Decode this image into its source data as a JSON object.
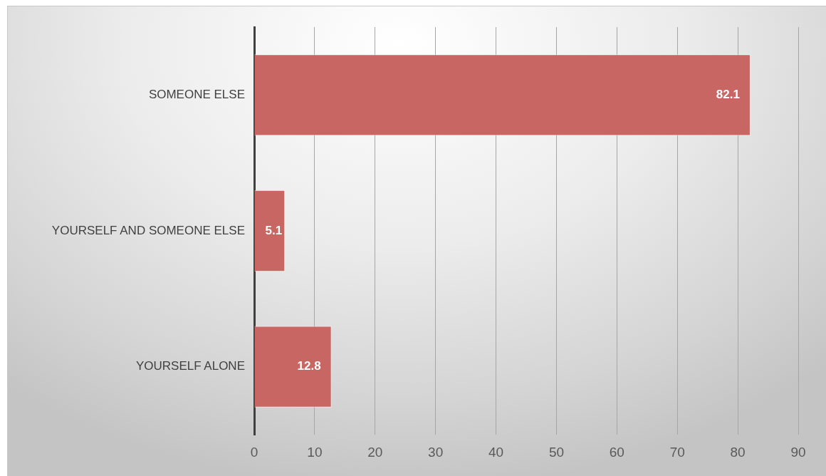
{
  "chart_data": {
    "type": "bar",
    "orientation": "horizontal",
    "categories": [
      "SOMEONE ELSE",
      "YOURSELF AND SOMEONE ELSE",
      "YOURSELF ALONE"
    ],
    "values": [
      82.1,
      5.1,
      12.8
    ],
    "color": "#c76663",
    "xlim": [
      0,
      90
    ],
    "xticks": [
      0,
      10,
      20,
      30,
      40,
      50,
      60,
      70,
      80,
      90
    ],
    "grid": "x",
    "data_labels": true
  }
}
